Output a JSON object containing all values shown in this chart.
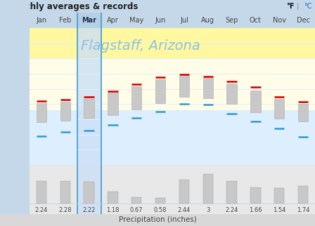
{
  "title": "Monthly averages & records",
  "subtitle": "Flagstaff, Arizona",
  "months": [
    "Jan",
    "Feb",
    "Mar",
    "Apr",
    "May",
    "Jun",
    "Jul",
    "Aug",
    "Sep",
    "Oct",
    "Nov",
    "Dec"
  ],
  "highlighted_month_idx": 2,
  "record_high": [
    44,
    46,
    50,
    57,
    66,
    75,
    79,
    76,
    70,
    62,
    50,
    43
  ],
  "avg_high": [
    41,
    43,
    47,
    55,
    63,
    73,
    77,
    74,
    67,
    58,
    47,
    40
  ],
  "avg_low": [
    16,
    18,
    22,
    26,
    33,
    41,
    50,
    48,
    40,
    29,
    21,
    17
  ],
  "record_low": [
    -2,
    3,
    5,
    13,
    22,
    30,
    40,
    39,
    27,
    17,
    8,
    -3
  ],
  "precipitation": [
    2.24,
    2.28,
    2.22,
    1.18,
    0.67,
    0.58,
    2.44,
    3.0,
    2.24,
    1.66,
    1.54,
    1.74
  ],
  "ylim_main": [
    -40,
    140
  ],
  "yticks_main": [
    -40,
    -20,
    0,
    20,
    40,
    60,
    80,
    100,
    120
  ],
  "header_bg": "#c5d8ea",
  "highlight_col_bg": "#ccdff5",
  "warm_bg_color": "#fffde8",
  "warm_top_bg_color": "#fff8a0",
  "cold_bg_color": "#ddeeff",
  "avg_bar_color": "#c8c8c8",
  "avg_bar_edge": "#aaaaaa",
  "record_high_color": "#cc0000",
  "record_low_color": "#3399cc",
  "precip_bar_color": "#c8c8c8",
  "title_color": "#222222",
  "subtitle_color": "#88bbdd",
  "month_label_color": "#444444",
  "highlight_month_color": "#223355",
  "ytick_color": "#555555",
  "grid_line_color": "#ddeeff",
  "blue_line_color": "#4499cc",
  "precip_text_color": "#444444",
  "precip_label_color": "#444444",
  "precip_label_bg": "#e8e8e8"
}
